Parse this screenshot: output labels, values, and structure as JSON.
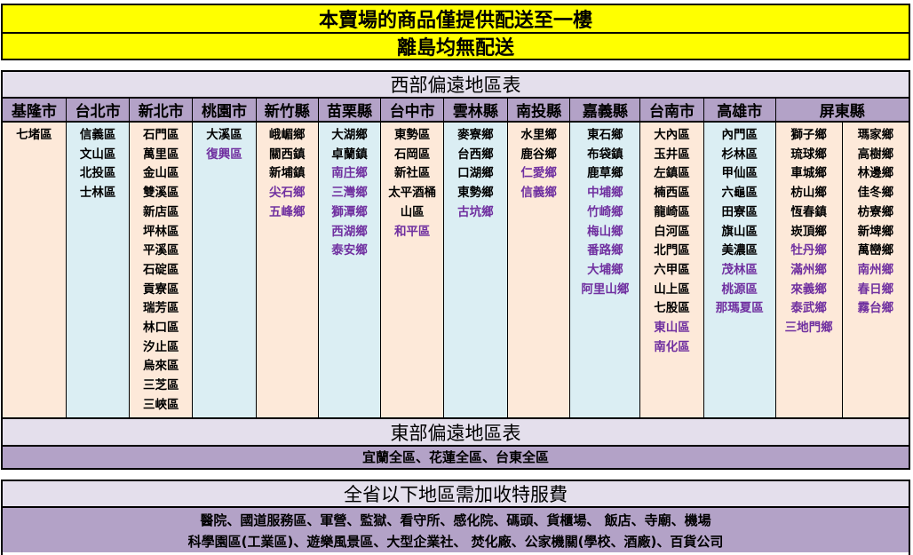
{
  "notice": {
    "line1": "本賣場的商品僅提供配送至一樓",
    "line2": "離島均無配送"
  },
  "west": {
    "title": "西部偏遠地區表",
    "columns": [
      {
        "name": "基隆市",
        "bg": "peach",
        "width": 72,
        "lists": [
          [
            {
              "t": "七堵區"
            }
          ]
        ]
      },
      {
        "name": "台北市",
        "bg": "blue",
        "width": 72,
        "lists": [
          [
            {
              "t": "信義區"
            },
            {
              "t": "文山區"
            },
            {
              "t": "北投區"
            },
            {
              "t": "士林區"
            }
          ]
        ]
      },
      {
        "name": "新北市",
        "bg": "peach",
        "width": 71,
        "lists": [
          [
            {
              "t": "石門區"
            },
            {
              "t": "萬里區"
            },
            {
              "t": "金山區"
            },
            {
              "t": "雙溪區"
            },
            {
              "t": "新店區"
            },
            {
              "t": "坪林區"
            },
            {
              "t": "平溪區"
            },
            {
              "t": "石碇區"
            },
            {
              "t": "貢寮區"
            },
            {
              "t": "瑞芳區"
            },
            {
              "t": "林口區"
            },
            {
              "t": "汐止區"
            },
            {
              "t": "烏來區"
            },
            {
              "t": "三芝區"
            },
            {
              "t": "三峽區"
            }
          ]
        ]
      },
      {
        "name": "桃園市",
        "bg": "blue",
        "width": 72,
        "lists": [
          [
            {
              "t": "大溪區"
            },
            {
              "t": "復興區",
              "h": true
            }
          ]
        ]
      },
      {
        "name": "新竹縣",
        "bg": "peach",
        "width": 70,
        "lists": [
          [
            {
              "t": "峨嵋鄉"
            },
            {
              "t": "關西鎮"
            },
            {
              "t": "新埔鎮"
            },
            {
              "t": "尖石鄉",
              "h": true
            },
            {
              "t": "五峰鄉",
              "h": true
            }
          ]
        ]
      },
      {
        "name": "苗栗縣",
        "bg": "blue",
        "width": 71,
        "lists": [
          [
            {
              "t": "大湖鄉"
            },
            {
              "t": "卓蘭鎮"
            },
            {
              "t": "南庄鄉",
              "h": true
            },
            {
              "t": "三灣鄉",
              "h": true
            },
            {
              "t": "獅潭鄉",
              "h": true
            },
            {
              "t": "西湖鄉",
              "h": true
            },
            {
              "t": "泰安鄉",
              "h": true
            }
          ]
        ]
      },
      {
        "name": "台中市",
        "bg": "peach",
        "width": 71,
        "lists": [
          [
            {
              "t": "東勢區"
            },
            {
              "t": "石岡區"
            },
            {
              "t": "新社區"
            },
            {
              "t": "太平酒桶山區"
            },
            {
              "t": "和平區",
              "h": true
            }
          ]
        ]
      },
      {
        "name": "雲林縣",
        "bg": "blue",
        "width": 72,
        "lists": [
          [
            {
              "t": "麥寮鄉"
            },
            {
              "t": "台西鄉"
            },
            {
              "t": "口湖鄉"
            },
            {
              "t": "東勢鄉"
            },
            {
              "t": "古坑鄉",
              "h": true
            }
          ]
        ]
      },
      {
        "name": "南投縣",
        "bg": "peach",
        "width": 71,
        "lists": [
          [
            {
              "t": "水里鄉"
            },
            {
              "t": "鹿谷鄉"
            },
            {
              "t": "仁愛鄉",
              "h": true
            },
            {
              "t": "信義鄉",
              "h": true
            }
          ]
        ]
      },
      {
        "name": "嘉義縣",
        "bg": "blue",
        "width": 79,
        "lists": [
          [
            {
              "t": "東石鄉"
            },
            {
              "t": "布袋鎮"
            },
            {
              "t": "鹿草鄉"
            },
            {
              "t": "中埔鄉",
              "h": true
            },
            {
              "t": "竹崎鄉",
              "h": true
            },
            {
              "t": "梅山鄉",
              "h": true
            },
            {
              "t": "番路鄉",
              "h": true
            },
            {
              "t": "大埔鄉",
              "h": true
            },
            {
              "t": "阿里山鄉",
              "h": true
            }
          ]
        ]
      },
      {
        "name": "台南市",
        "bg": "peach",
        "width": 72,
        "lists": [
          [
            {
              "t": "大內區"
            },
            {
              "t": "玉井區"
            },
            {
              "t": "左鎮區"
            },
            {
              "t": "楠西區"
            },
            {
              "t": "龍崎區"
            },
            {
              "t": "白河區"
            },
            {
              "t": "北門區"
            },
            {
              "t": "六甲區"
            },
            {
              "t": "山上區"
            },
            {
              "t": "七股區"
            },
            {
              "t": "東山區",
              "h": true
            },
            {
              "t": "南化區",
              "h": true
            }
          ]
        ]
      },
      {
        "name": "高雄市",
        "bg": "blue",
        "width": 81,
        "lists": [
          [
            {
              "t": "內門區"
            },
            {
              "t": "杉林區"
            },
            {
              "t": "甲仙區"
            },
            {
              "t": "六龜區"
            },
            {
              "t": "田寮區"
            },
            {
              "t": "旗山區"
            },
            {
              "t": "美濃區"
            },
            {
              "t": "茂林區",
              "h": true
            },
            {
              "t": "桃源區",
              "h": true
            },
            {
              "t": "那瑪夏區",
              "h": true
            }
          ]
        ]
      },
      {
        "name": "屏東縣",
        "bg": "peach",
        "width": 150,
        "lists": [
          [
            {
              "t": "獅子鄉"
            },
            {
              "t": "琉球鄉"
            },
            {
              "t": "車城鄉"
            },
            {
              "t": "枋山鄉"
            },
            {
              "t": "恆春鎮"
            },
            {
              "t": "崁頂鄉"
            },
            {
              "t": "牡丹鄉",
              "h": true
            },
            {
              "t": "滿州鄉",
              "h": true
            },
            {
              "t": "來義鄉",
              "h": true
            },
            {
              "t": "泰武鄉",
              "h": true
            },
            {
              "t": "三地門鄉",
              "h": true
            }
          ],
          [
            {
              "t": "瑪家鄉"
            },
            {
              "t": "高樹鄉"
            },
            {
              "t": "林邊鄉"
            },
            {
              "t": "佳冬鄉"
            },
            {
              "t": "枋寮鄉"
            },
            {
              "t": "新埤鄉"
            },
            {
              "t": "萬巒鄉"
            },
            {
              "t": "南州鄉",
              "h": true
            },
            {
              "t": "春日鄉",
              "h": true
            },
            {
              "t": "霧台鄉",
              "h": true
            }
          ]
        ]
      }
    ]
  },
  "east": {
    "title": "東部偏遠地區表",
    "content": "宜蘭全區、花蓮全區、台東全區"
  },
  "fee": {
    "title": "全省以下地區需加收特服費",
    "line1": "醫院、國道服務區、軍營、監獄、看守所、感化院、碼頭、貨櫃場、 飯店、寺廟、機場",
    "line2": "科學園區(工業區)、遊樂風景區、大型企業社、 焚化廠、公家機關(學校、酒廠)、百貨公司"
  },
  "colors": {
    "notice_bg": "#ffff00",
    "header_bg": "#b3a2c7",
    "title_bg": "#e4dfec",
    "peach": "#fde9d9",
    "blue": "#dbeef3",
    "highlight_text": "#7030a0"
  }
}
